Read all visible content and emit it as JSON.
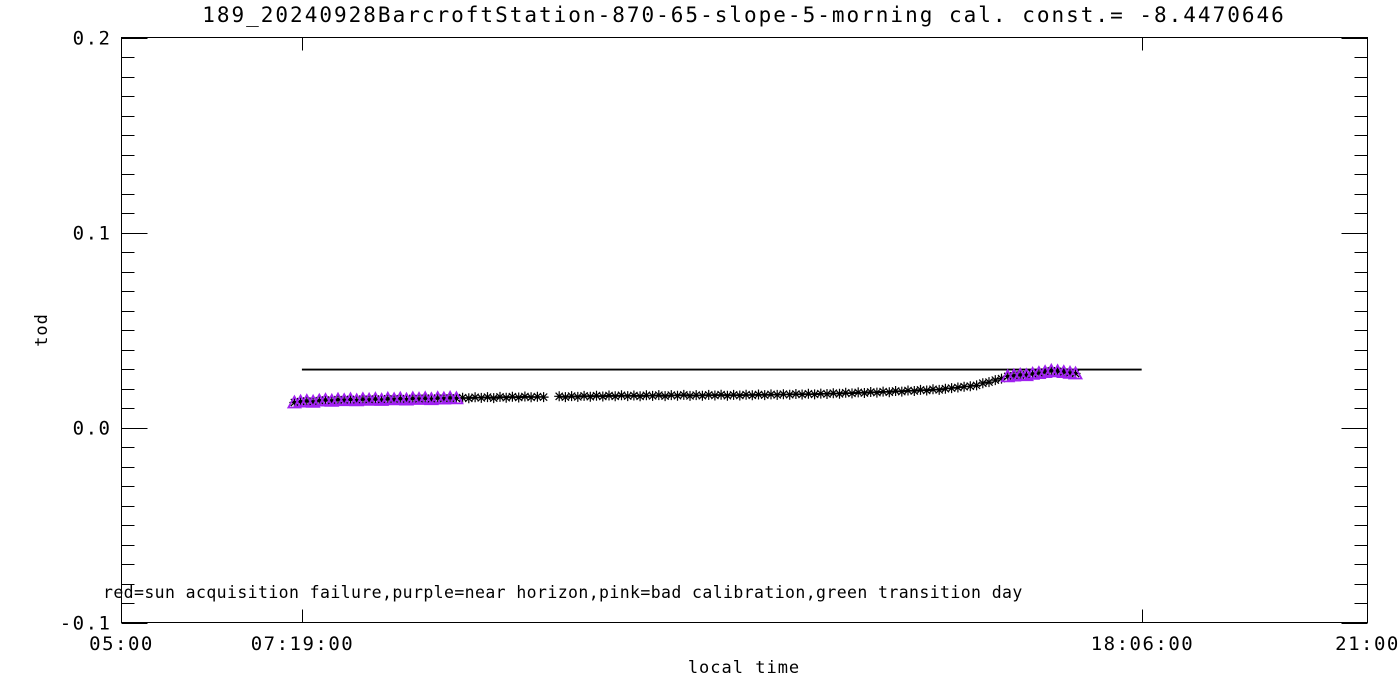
{
  "window": {
    "background": "#ffffff"
  },
  "footnote": "red=sun acquisition failure,purple=near horizon,pink=bad calibration,green transition day",
  "colors": {
    "axis": "#000000",
    "text": "#000000",
    "normal_marker": "#000000",
    "near_horizon_marker": "#a020f0",
    "reference_line": "#000000"
  },
  "chart_data": {
    "type": "scatter",
    "title": "189_20240928BarcroftStation-870-65-slope-5-morning cal. const.= -8.4470646",
    "xlabel": "local time",
    "ylabel": "tod",
    "x_range_hours": [
      5,
      21
    ],
    "y_range": [
      -0.1,
      0.2
    ],
    "grid": false,
    "legend_position": "none",
    "x_ticks": [
      {
        "hours": 7.3167,
        "label": "07:19:00"
      },
      {
        "hours": 18.1,
        "label": "18:06:00"
      }
    ],
    "x_edge_labels": [
      {
        "hours": 5,
        "label": "05:00"
      },
      {
        "hours": 21,
        "label": "21:00"
      }
    ],
    "y_ticks": [
      {
        "value": 0.2,
        "label": "0.2"
      },
      {
        "value": 0.1,
        "label": "0.1"
      },
      {
        "value": 0.0,
        "label": "0.0"
      },
      {
        "value": -0.1,
        "label": "-0.1"
      }
    ],
    "y_minor_step": 0.01,
    "reference_line": {
      "tod": 0.0297,
      "start_hours": 7.3167,
      "end_hours": 18.1
    },
    "series": [
      {
        "name": "tod-normal",
        "marker": "asterisk",
        "color": "#000000",
        "points": [
          [
            9.38,
            0.0153
          ],
          [
            9.46,
            0.015
          ],
          [
            9.54,
            0.0155
          ],
          [
            9.62,
            0.0152
          ],
          [
            9.7,
            0.0156
          ],
          [
            9.78,
            0.0151
          ],
          [
            9.86,
            0.0157
          ],
          [
            9.94,
            0.0153
          ],
          [
            10.02,
            0.0158
          ],
          [
            10.1,
            0.0154
          ],
          [
            10.18,
            0.0159
          ],
          [
            10.26,
            0.0155
          ],
          [
            10.34,
            0.0158
          ],
          [
            10.42,
            0.0156
          ],
          [
            10.62,
            0.016
          ],
          [
            10.7,
            0.0156
          ],
          [
            10.78,
            0.0161
          ],
          [
            10.86,
            0.0157
          ],
          [
            10.94,
            0.0162
          ],
          [
            11.02,
            0.0158
          ],
          [
            11.1,
            0.0163
          ],
          [
            11.18,
            0.0159
          ],
          [
            11.26,
            0.0164
          ],
          [
            11.34,
            0.016
          ],
          [
            11.42,
            0.0165
          ],
          [
            11.5,
            0.0161
          ],
          [
            11.58,
            0.0164
          ],
          [
            11.66,
            0.016
          ],
          [
            11.74,
            0.0165
          ],
          [
            11.82,
            0.0162
          ],
          [
            11.9,
            0.0166
          ],
          [
            11.98,
            0.0161
          ],
          [
            12.06,
            0.0166
          ],
          [
            12.14,
            0.0163
          ],
          [
            12.22,
            0.0167
          ],
          [
            12.3,
            0.0162
          ],
          [
            12.38,
            0.0166
          ],
          [
            12.46,
            0.0163
          ],
          [
            12.54,
            0.0167
          ],
          [
            12.62,
            0.0164
          ],
          [
            12.7,
            0.0168
          ],
          [
            12.78,
            0.0163
          ],
          [
            12.86,
            0.0167
          ],
          [
            12.94,
            0.0164
          ],
          [
            13.02,
            0.0168
          ],
          [
            13.1,
            0.0165
          ],
          [
            13.18,
            0.0169
          ],
          [
            13.26,
            0.0166
          ],
          [
            13.34,
            0.017
          ],
          [
            13.42,
            0.0167
          ],
          [
            13.5,
            0.0171
          ],
          [
            13.58,
            0.0168
          ],
          [
            13.66,
            0.0172
          ],
          [
            13.74,
            0.0169
          ],
          [
            13.82,
            0.0173
          ],
          [
            13.9,
            0.017
          ],
          [
            13.98,
            0.0174
          ],
          [
            14.06,
            0.0172
          ],
          [
            14.14,
            0.0176
          ],
          [
            14.22,
            0.0173
          ],
          [
            14.3,
            0.0178
          ],
          [
            14.38,
            0.0175
          ],
          [
            14.46,
            0.018
          ],
          [
            14.54,
            0.0177
          ],
          [
            14.62,
            0.0182
          ],
          [
            14.7,
            0.0179
          ],
          [
            14.78,
            0.0184
          ],
          [
            14.86,
            0.0181
          ],
          [
            14.94,
            0.0187
          ],
          [
            15.02,
            0.0184
          ],
          [
            15.1,
            0.019
          ],
          [
            15.18,
            0.0187
          ],
          [
            15.26,
            0.0193
          ],
          [
            15.34,
            0.019
          ],
          [
            15.42,
            0.0196
          ],
          [
            15.5,
            0.0193
          ],
          [
            15.58,
            0.0199
          ],
          [
            15.66,
            0.0202
          ],
          [
            15.74,
            0.0205
          ],
          [
            15.82,
            0.0209
          ],
          [
            15.9,
            0.0212
          ],
          [
            15.98,
            0.0216
          ],
          [
            16.06,
            0.0227
          ],
          [
            16.14,
            0.0233
          ],
          [
            16.22,
            0.0243
          ],
          [
            16.3,
            0.0251
          ]
        ]
      },
      {
        "name": "tod-near-horizon",
        "marker": "asterisk-triangle",
        "color": "#a020f0",
        "points": [
          [
            7.22,
            0.0128
          ],
          [
            7.3,
            0.0133
          ],
          [
            7.38,
            0.0136
          ],
          [
            7.46,
            0.0132
          ],
          [
            7.54,
            0.0138
          ],
          [
            7.62,
            0.0141
          ],
          [
            7.7,
            0.0137
          ],
          [
            7.78,
            0.0143
          ],
          [
            7.86,
            0.014
          ],
          [
            7.94,
            0.0144
          ],
          [
            8.02,
            0.0139
          ],
          [
            8.1,
            0.0145
          ],
          [
            8.18,
            0.0142
          ],
          [
            8.26,
            0.0146
          ],
          [
            8.34,
            0.0141
          ],
          [
            8.42,
            0.0147
          ],
          [
            8.5,
            0.0144
          ],
          [
            8.58,
            0.0148
          ],
          [
            8.66,
            0.0143
          ],
          [
            8.74,
            0.0149
          ],
          [
            8.82,
            0.0146
          ],
          [
            8.9,
            0.015
          ],
          [
            8.98,
            0.0145
          ],
          [
            9.06,
            0.0151
          ],
          [
            9.14,
            0.0148
          ],
          [
            9.22,
            0.0152
          ],
          [
            9.3,
            0.0149
          ],
          [
            16.38,
            0.0262
          ],
          [
            16.46,
            0.0266
          ],
          [
            16.54,
            0.027
          ],
          [
            16.62,
            0.0268
          ],
          [
            16.7,
            0.0275
          ],
          [
            16.78,
            0.0279
          ],
          [
            16.86,
            0.0284
          ],
          [
            16.94,
            0.0291
          ],
          [
            17.02,
            0.0288
          ],
          [
            17.1,
            0.0284
          ],
          [
            17.18,
            0.028
          ],
          [
            17.25,
            0.0277
          ]
        ]
      }
    ]
  }
}
